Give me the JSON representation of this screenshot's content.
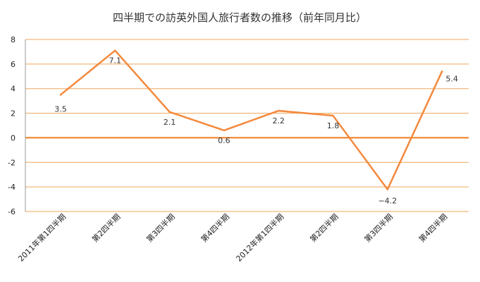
{
  "chart_data": {
    "type": "line",
    "title": "四半期での訪英外国人旅行者数の推移（前年同月比）",
    "xlabel": "",
    "ylabel": "",
    "categories": [
      "2011年第1四半期",
      "第2四半期",
      "第3四半期",
      "第4四半期",
      "2012年第1四半期",
      "第2四半期",
      "第3四半期",
      "第4四半期"
    ],
    "series": [
      {
        "values": [
          3.5,
          7.1,
          2.1,
          0.6,
          2.2,
          1.8,
          -4.2,
          5.4
        ]
      }
    ],
    "data_labels": [
      "3.5",
      "7.1",
      "2.1",
      "0.6",
      "2.2",
      "1.8",
      "−4.2",
      "5.4"
    ],
    "ylim": [
      -6,
      8
    ],
    "yticks": [
      "8",
      "6",
      "4",
      "2",
      "0",
      "-2",
      "-4",
      "-6"
    ],
    "grid": true,
    "legend": "none",
    "colors": {
      "line": "#f4893c",
      "grid": "#f0a65c",
      "zero": "#f07d1e",
      "axis": "#999999"
    }
  }
}
